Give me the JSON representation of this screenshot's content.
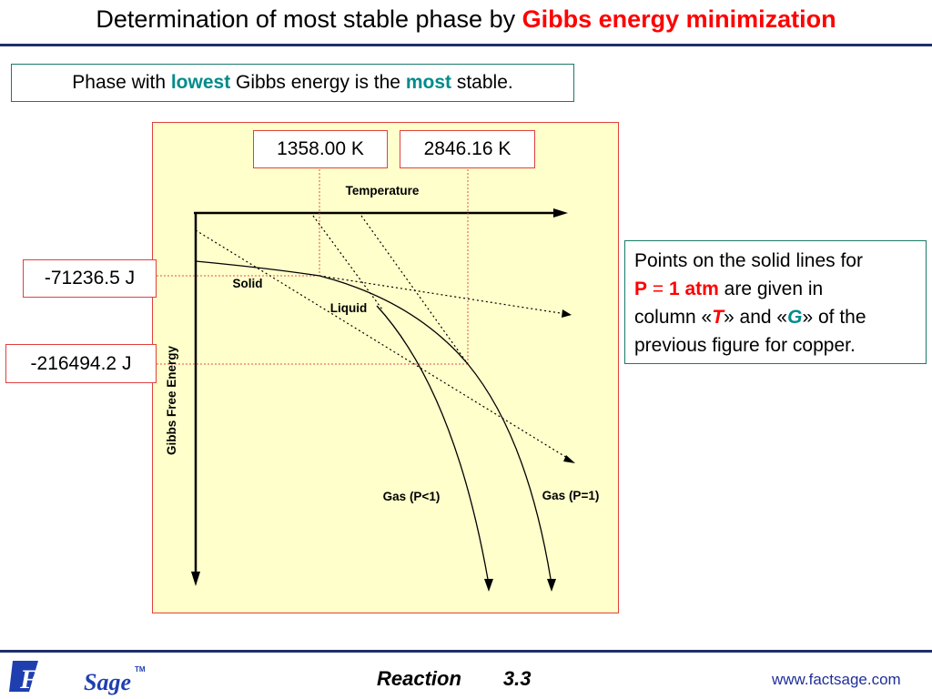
{
  "title": {
    "prefix": "Determination of most stable phase by ",
    "accent": "Gibbs energy minimization"
  },
  "subtitle": {
    "part1": "Phase with ",
    "lowest": "lowest",
    "part2": " Gibbs energy is the ",
    "most": "most",
    "part3": " stable."
  },
  "values": {
    "t_melt": "1358.00 K",
    "t_boil": "2846.16 K",
    "g_melt": "-71236.5 J",
    "g_boil": "-216494.2 J"
  },
  "diagram": {
    "x_axis_label": "Temperature",
    "y_axis_label": "Gibbs Free Energy",
    "curves": {
      "solid": "Solid",
      "liquid": "Liquid",
      "gas_low": "Gas (P<1)",
      "gas_one": "Gas (P=1)"
    }
  },
  "note": {
    "line1": "Points on the solid lines for",
    "p": "P",
    "eq": " = ",
    "atm": "1 atm",
    "line2": " are given in",
    "line3a": "column «",
    "T": "T",
    "line3b": "» and «",
    "G": "G",
    "line3c": "» of the",
    "line4": "previous figure for copper."
  },
  "footer": {
    "course": "Reaction",
    "number": "3.3",
    "url": "www.factsage.com",
    "logo_fact": "Fact",
    "logo_sage": "Sage",
    "logo_tm": "TM"
  },
  "colors": {
    "accent_red": "#ff0000",
    "teal": "#008b8b",
    "panel_fill": "#ffffcc",
    "rule_navy": "#1f2f6b"
  }
}
